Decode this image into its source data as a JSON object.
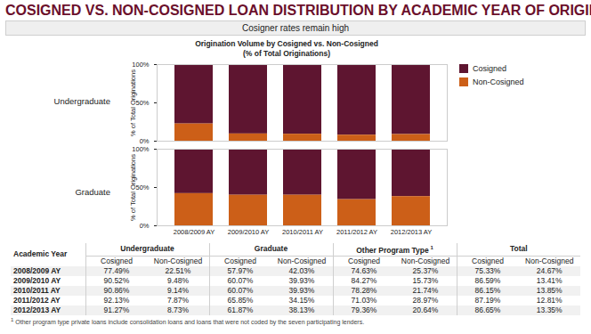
{
  "header": {
    "title": "COSIGNED VS. NON-COSIGNED LOAN DISTRIBUTION BY ACADEMIC YEAR OF ORIGINATION",
    "subtitle": "Cosigner rates remain high"
  },
  "figure": {
    "title": "Origination Volume by Cosigned vs. Non-Cosigned",
    "subtitle": "(% of Total Originations)"
  },
  "chart_data": [
    {
      "type": "bar",
      "stacked": true,
      "title": "Undergraduate",
      "ylabel": "% of Total Originations",
      "categories": [
        "2008/2009 AY",
        "2009/2010 AY",
        "2010/2011 AY",
        "2011/2012 AY",
        "2012/2013 AY"
      ],
      "series": [
        {
          "name": "Cosigned",
          "color": "#5e1530",
          "values": [
            77.49,
            90.52,
            90.86,
            92.13,
            91.27
          ]
        },
        {
          "name": "Non-Cosigned",
          "color": "#cc5f18",
          "values": [
            22.51,
            9.48,
            9.14,
            7.87,
            8.73
          ]
        }
      ],
      "ylim": [
        0,
        100
      ],
      "yticks": [
        {
          "value": 0,
          "label": "0%"
        },
        {
          "value": 50,
          "label": "50%"
        },
        {
          "value": 100,
          "label": "100%"
        }
      ],
      "tick_labels": "y",
      "legend": "right"
    },
    {
      "type": "bar",
      "stacked": true,
      "title": "Graduate",
      "ylabel": "% of Total Originations",
      "categories": [
        "2008/2009 AY",
        "2009/2010 AY",
        "2010/2011 AY",
        "2011/2012 AY",
        "2012/2013 AY"
      ],
      "series": [
        {
          "name": "Cosigned",
          "color": "#5e1530",
          "values": [
            57.97,
            60.07,
            60.07,
            65.85,
            61.87
          ]
        },
        {
          "name": "Non-Cosigned",
          "color": "#cc5f18",
          "values": [
            42.03,
            39.93,
            39.93,
            34.15,
            38.13
          ]
        }
      ],
      "ylim": [
        0,
        100
      ],
      "yticks": [
        {
          "value": 0,
          "label": "0%"
        },
        {
          "value": 50,
          "label": "50%"
        },
        {
          "value": 100,
          "label": "100%"
        }
      ]
    }
  ],
  "table": {
    "stub": "Academic Year",
    "groups": [
      {
        "name": "Undergraduate",
        "columns": [
          "Cosigned",
          "Non-Cosigned"
        ]
      },
      {
        "name": "Graduate",
        "columns": [
          "Cosigned",
          "Non-Cosigned"
        ]
      },
      {
        "name": "Other Program Type",
        "note": "1",
        "columns": [
          "Cosigned",
          "Non-Cosigned"
        ]
      },
      {
        "name": "Total",
        "columns": [
          "Cosigned",
          "Non-Cosigned"
        ]
      }
    ],
    "rows": [
      [
        "2008/2009 AY",
        "77.49%",
        "22.51%",
        "57.97%",
        "42.03%",
        "74.63%",
        "25.37%",
        "75.33%",
        "24.67%"
      ],
      [
        "2009/2010 AY",
        "90.52%",
        "9.48%",
        "60.07%",
        "39.93%",
        "84.27%",
        "15.73%",
        "86.59%",
        "13.41%"
      ],
      [
        "2010/2011 AY",
        "90.86%",
        "9.14%",
        "60.07%",
        "39.93%",
        "78.28%",
        "21.74%",
        "86.15%",
        "13.85%"
      ],
      [
        "2011/2012 AY",
        "92.13%",
        "7.87%",
        "65.85%",
        "34.15%",
        "71.03%",
        "28.97%",
        "87.19%",
        "12.81%"
      ],
      [
        "2012/2013 AY",
        "91.27%",
        "8.73%",
        "61.87%",
        "38.13%",
        "79.36%",
        "20.64%",
        "86.65%",
        "13.35%"
      ]
    ]
  },
  "footnote": {
    "mark": "1",
    "text": "Other program type private loans include consolidation loans and loans that were not coded by the seven participating lenders."
  }
}
